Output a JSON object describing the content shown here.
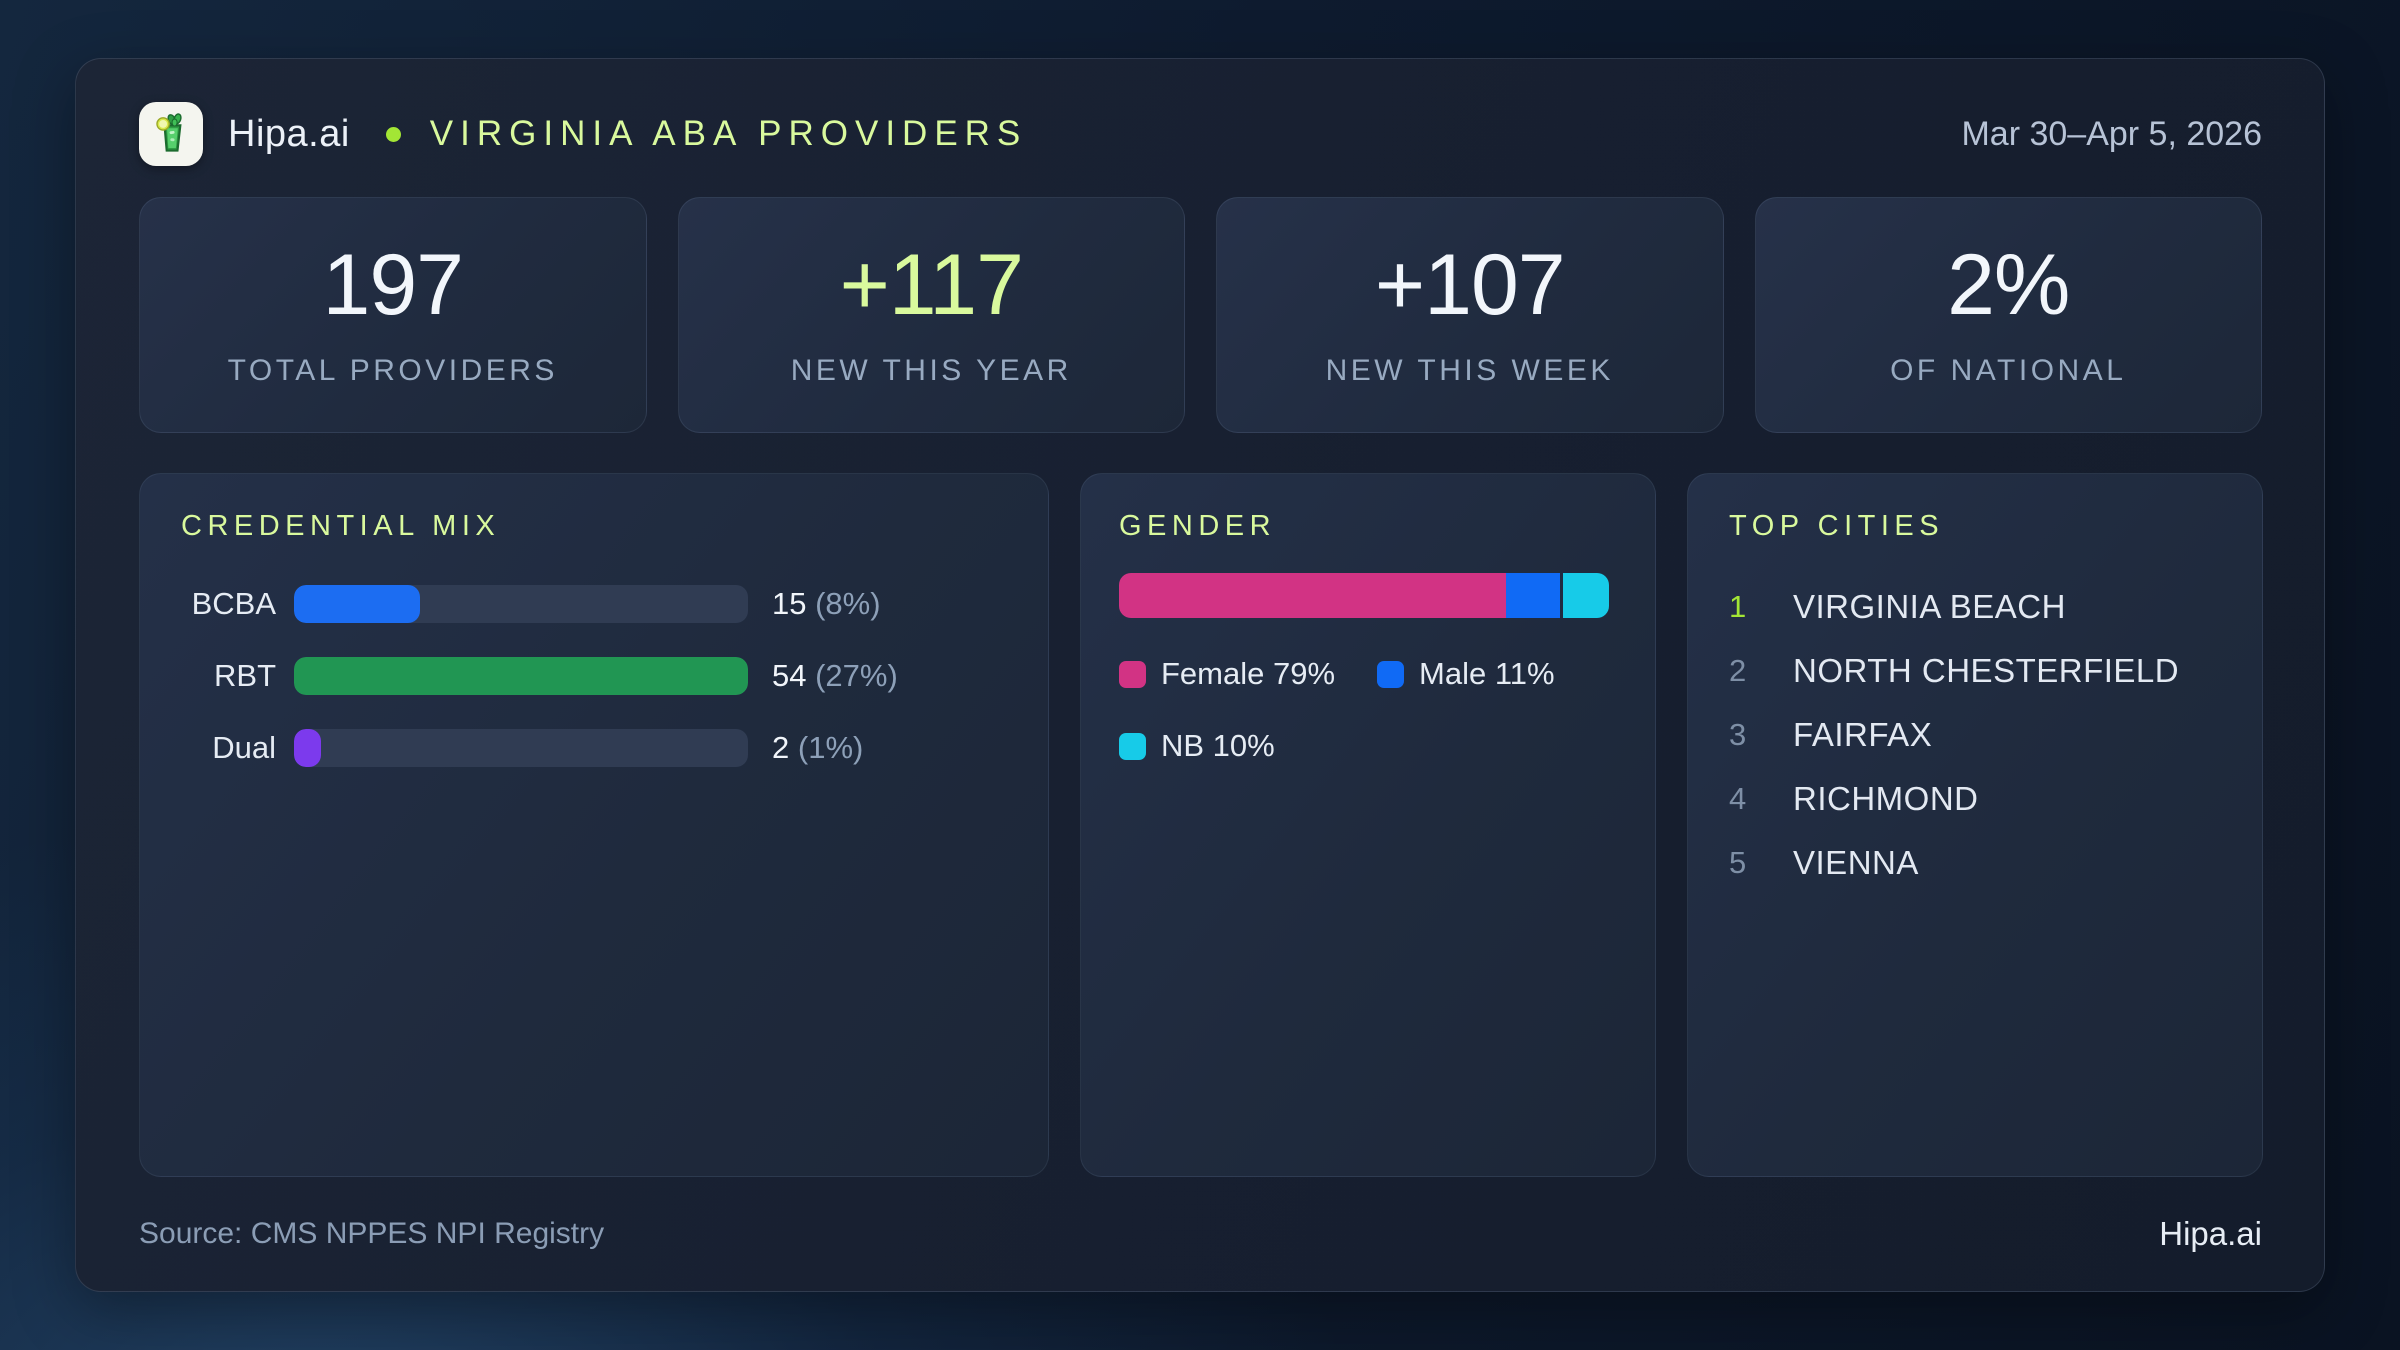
{
  "header": {
    "brand": "Hipa.ai",
    "title": "VIRGINIA ABA PROVIDERS",
    "date_range": "Mar 30–Apr 5, 2026"
  },
  "stats": [
    {
      "value": "197",
      "label": "TOTAL PROVIDERS"
    },
    {
      "value": "+117",
      "label": "NEW THIS YEAR"
    },
    {
      "value": "+107",
      "label": "NEW THIS WEEK"
    },
    {
      "value": "2%",
      "label": "OF NATIONAL"
    }
  ],
  "chart_data": [
    {
      "type": "bar",
      "orientation": "horizontal",
      "title": "CREDENTIAL MIX",
      "categories": [
        "BCBA",
        "RBT",
        "Dual"
      ],
      "values": [
        15,
        54,
        2
      ],
      "percent_of_total": [
        8,
        27,
        1
      ],
      "xlim": [
        0,
        54
      ],
      "rows": [
        {
          "label": "BCBA",
          "num": "15",
          "pct": "(8%)",
          "fill_pct": 27.8,
          "color": "#1c6df2"
        },
        {
          "label": "RBT",
          "num": "54",
          "pct": "(27%)",
          "fill_pct": 100,
          "color": "#219653"
        },
        {
          "label": "Dual",
          "num": "2",
          "pct": "(1%)",
          "fill_pct": 6,
          "color": "#7c3aed"
        }
      ]
    },
    {
      "type": "bar",
      "subtype": "stacked-100pct",
      "title": "GENDER",
      "unit": "%",
      "segments": [
        {
          "label": "Female",
          "value": 79,
          "legend": "Female 79%",
          "color": "#d23384"
        },
        {
          "label": "Male",
          "value": 11,
          "legend": "Male 11%",
          "color": "#106af5"
        },
        {
          "label": "NB",
          "value": 10,
          "legend": "NB 10%",
          "color": "#17cbe8"
        }
      ]
    },
    {
      "type": "table",
      "title": "TOP CITIES",
      "items": [
        {
          "rank": "1",
          "city": "VIRGINIA BEACH"
        },
        {
          "rank": "2",
          "city": "NORTH CHESTERFIELD"
        },
        {
          "rank": "3",
          "city": "FAIRFAX"
        },
        {
          "rank": "4",
          "city": "RICHMOND"
        },
        {
          "rank": "5",
          "city": "VIENNA"
        }
      ]
    }
  ],
  "footer": {
    "source": "Source: CMS NPPES NPI Registry",
    "brand": "Hipa.ai"
  },
  "colors": {
    "accent_green": "#d9f99d",
    "lime": "#a3e635",
    "female_pink": "#d23384",
    "male_blue": "#106af5",
    "nb_cyan": "#17cbe8",
    "bcba_blue": "#1c6df2",
    "rbt_green": "#219653",
    "dual_purple": "#7c3aed"
  }
}
